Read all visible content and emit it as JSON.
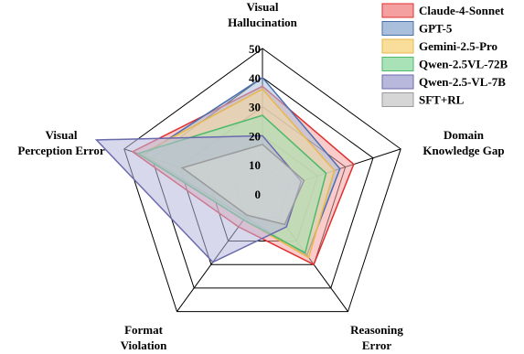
{
  "chart_data": {
    "type": "radar",
    "axes": [
      {
        "label": [
          "Visual",
          "Hallucination"
        ]
      },
      {
        "label": [
          "Domain",
          "Knowledge Gap"
        ]
      },
      {
        "label": [
          "Reasoning",
          "Error"
        ]
      },
      {
        "label": [
          "Format",
          "Violation"
        ]
      },
      {
        "label": [
          "Visual",
          "Perception Error"
        ]
      }
    ],
    "rlim": [
      0,
      50
    ],
    "ticks": [
      0,
      10,
      20,
      30,
      40,
      50
    ],
    "tick_labels": [
      "0",
      "10",
      "20",
      "30",
      "40",
      "50"
    ],
    "grid": true,
    "legend_position": "top-right",
    "series": [
      {
        "name": "Claude-4-Sonnet",
        "values": [
          37,
          33,
          30,
          14,
          47
        ],
        "fill": "#f4a0a0",
        "stroke": "#e03030"
      },
      {
        "name": "GPT-5",
        "values": [
          40,
          28,
          26,
          10,
          43
        ],
        "fill": "#a9bfdc",
        "stroke": "#4a6fae"
      },
      {
        "name": "Gemini-2.5-Pro",
        "values": [
          36,
          26,
          27,
          11,
          44
        ],
        "fill": "#f9dd9a",
        "stroke": "#e8b84a"
      },
      {
        "name": "Qwen-2.5VL-72B",
        "values": [
          27,
          23,
          25,
          11,
          45
        ],
        "fill": "#a8e2b6",
        "stroke": "#4cba6a"
      },
      {
        "name": "Qwen-2.5-VL-7B",
        "values": [
          20,
          14,
          14,
          29,
          60
        ],
        "fill": "#b8b8dc",
        "stroke": "#6a6aae"
      },
      {
        "name": "SFT+RL",
        "values": [
          17,
          15,
          13,
          9,
          29
        ],
        "fill": "#d6d6d6",
        "stroke": "#9a9a9a"
      }
    ]
  }
}
